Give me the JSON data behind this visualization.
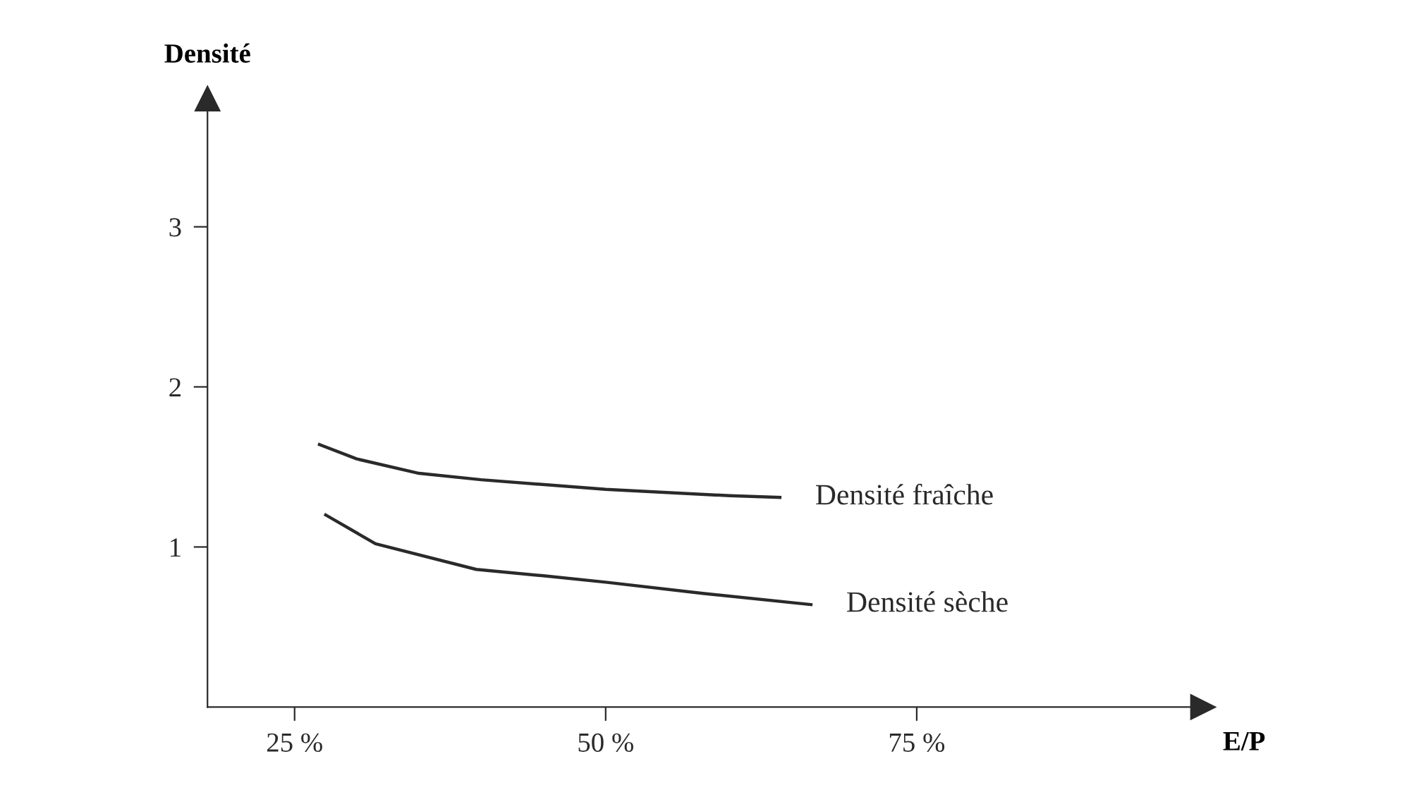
{
  "chart_data": {
    "type": "line",
    "xlabel": "E/P",
    "ylabel": "Densité",
    "series": [
      {
        "name": "Densité fraîche",
        "color": "#2a2a2a",
        "x": [
          27,
          30,
          35,
          40,
          50,
          60,
          64
        ],
        "values": [
          1.64,
          1.55,
          1.46,
          1.42,
          1.36,
          1.32,
          1.31
        ]
      },
      {
        "name": "Densité sèche",
        "color": "#2a2a2a",
        "x": [
          27.5,
          31.5,
          39.6,
          45,
          50,
          57.8,
          66.5
        ],
        "values": [
          1.2,
          1.02,
          0.86,
          0.82,
          0.78,
          0.71,
          0.64
        ]
      }
    ],
    "xlim": [
      18,
      98
    ],
    "ylim": [
      0,
      3.8
    ],
    "xticks": [
      {
        "value": 25,
        "label": "25 %"
      },
      {
        "value": 50,
        "label": "50 %"
      },
      {
        "value": 75,
        "label": "75 %"
      }
    ],
    "yticks": [
      1,
      2,
      3
    ],
    "grid": false,
    "legend": false,
    "marker": "none",
    "line_style": "solid"
  }
}
